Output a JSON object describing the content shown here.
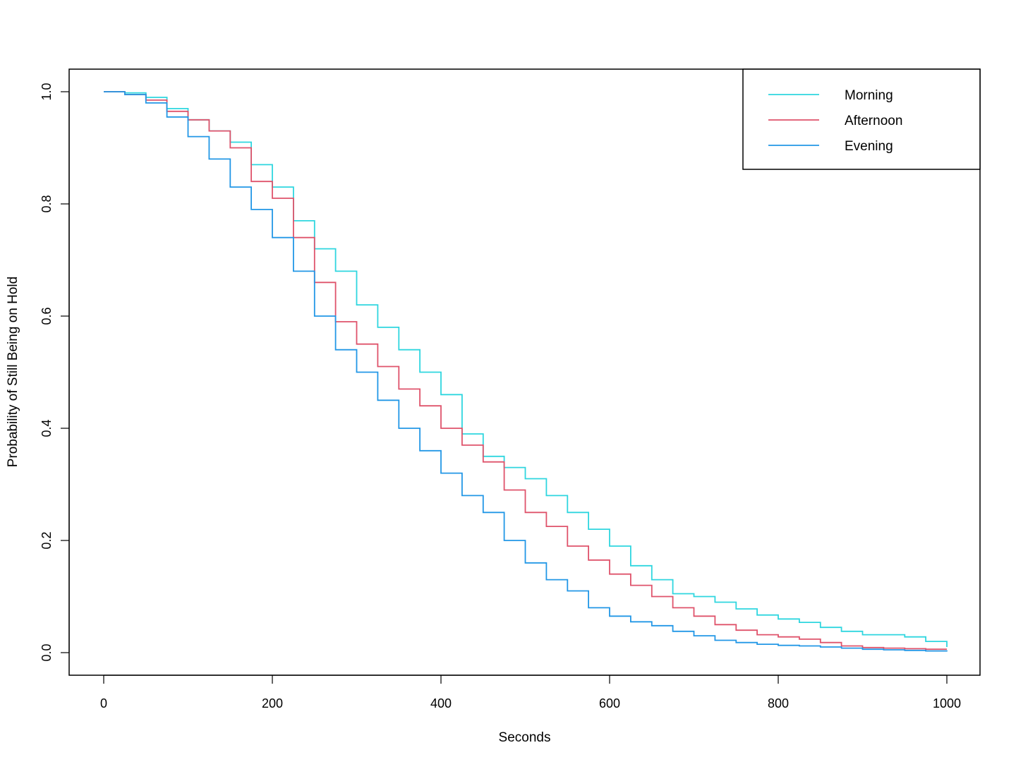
{
  "chart_data": {
    "type": "line",
    "step": true,
    "xlabel": "Seconds",
    "ylabel": "Probability of Still Being on Hold",
    "xlim": [
      0,
      1000
    ],
    "ylim": [
      0,
      1
    ],
    "xticks": [
      0,
      200,
      400,
      600,
      800,
      1000
    ],
    "xtick_labels": [
      "0",
      "200",
      "400",
      "600",
      "800",
      "1000"
    ],
    "yticks": [
      0,
      0.2,
      0.4,
      0.6,
      0.8,
      1
    ],
    "ytick_labels": [
      "0.0",
      "0.2",
      "0.4",
      "0.6",
      "0.8",
      "1.0"
    ],
    "grid": false,
    "legend_position": "top-right",
    "series": [
      {
        "name": "Morning",
        "color": "#2fd6df",
        "x": [
          0,
          25,
          50,
          75,
          100,
          125,
          150,
          175,
          200,
          225,
          250,
          275,
          300,
          325,
          350,
          375,
          400,
          425,
          450,
          475,
          500,
          525,
          550,
          575,
          600,
          625,
          650,
          675,
          700,
          725,
          750,
          775,
          800,
          825,
          850,
          875,
          900,
          925,
          950,
          975,
          1000
        ],
        "y": [
          1.0,
          0.998,
          0.99,
          0.97,
          0.95,
          0.93,
          0.91,
          0.87,
          0.83,
          0.77,
          0.72,
          0.68,
          0.62,
          0.58,
          0.54,
          0.5,
          0.46,
          0.39,
          0.35,
          0.33,
          0.31,
          0.28,
          0.25,
          0.22,
          0.19,
          0.155,
          0.13,
          0.105,
          0.1,
          0.09,
          0.078,
          0.067,
          0.06,
          0.054,
          0.045,
          0.038,
          0.032,
          0.032,
          0.028,
          0.02,
          0.01
        ]
      },
      {
        "name": "Afternoon",
        "color": "#df536b",
        "x": [
          0,
          25,
          50,
          75,
          100,
          125,
          150,
          175,
          200,
          225,
          250,
          275,
          300,
          325,
          350,
          375,
          400,
          425,
          450,
          475,
          500,
          525,
          550,
          575,
          600,
          625,
          650,
          675,
          700,
          725,
          750,
          775,
          800,
          825,
          850,
          875,
          900,
          925,
          950,
          975,
          1000
        ],
        "y": [
          1.0,
          0.995,
          0.985,
          0.965,
          0.95,
          0.93,
          0.9,
          0.84,
          0.81,
          0.74,
          0.66,
          0.59,
          0.55,
          0.51,
          0.47,
          0.44,
          0.4,
          0.37,
          0.34,
          0.29,
          0.25,
          0.225,
          0.19,
          0.165,
          0.14,
          0.12,
          0.1,
          0.08,
          0.065,
          0.05,
          0.04,
          0.032,
          0.028,
          0.024,
          0.018,
          0.012,
          0.009,
          0.008,
          0.007,
          0.006,
          0.006
        ]
      },
      {
        "name": "Evening",
        "color": "#2297e6",
        "x": [
          0,
          25,
          50,
          75,
          100,
          125,
          150,
          175,
          200,
          225,
          250,
          275,
          300,
          325,
          350,
          375,
          400,
          425,
          450,
          475,
          500,
          525,
          550,
          575,
          600,
          625,
          650,
          675,
          700,
          725,
          750,
          775,
          800,
          825,
          850,
          875,
          900,
          925,
          950,
          975,
          1000
        ],
        "y": [
          1.0,
          0.995,
          0.98,
          0.955,
          0.92,
          0.88,
          0.83,
          0.79,
          0.74,
          0.68,
          0.6,
          0.54,
          0.5,
          0.45,
          0.4,
          0.36,
          0.32,
          0.28,
          0.25,
          0.2,
          0.16,
          0.13,
          0.11,
          0.08,
          0.065,
          0.055,
          0.048,
          0.038,
          0.03,
          0.022,
          0.018,
          0.015,
          0.013,
          0.012,
          0.01,
          0.008,
          0.006,
          0.005,
          0.004,
          0.003,
          0.002
        ]
      }
    ]
  }
}
